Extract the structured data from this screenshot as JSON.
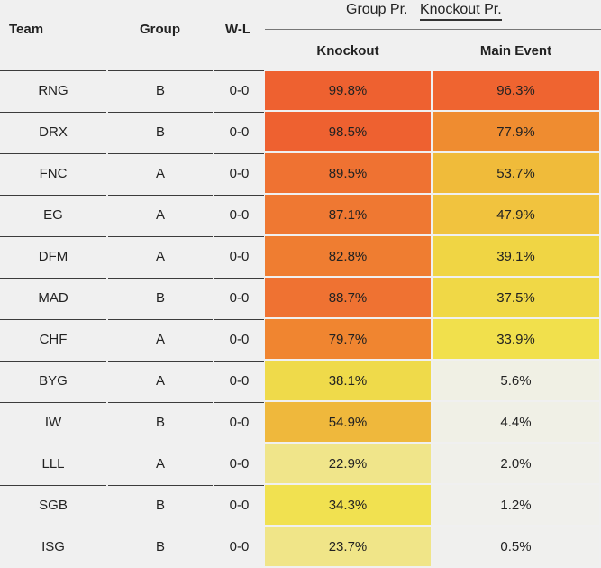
{
  "headers": {
    "team": "Team",
    "group": "Group",
    "wl": "W-L",
    "knockout": "Knockout",
    "main_event": "Main Event"
  },
  "tabs": [
    {
      "label": "Group Pr.",
      "active": false
    },
    {
      "label": "Knockout Pr.",
      "active": true
    }
  ],
  "rows": [
    {
      "team": "RNG",
      "group": "B",
      "wl": "0-0",
      "knockout": "99.8%",
      "main_event": "96.3%",
      "ko_color": "#ee6130",
      "me_color": "#ef6430"
    },
    {
      "team": "DRX",
      "group": "B",
      "wl": "0-0",
      "knockout": "98.5%",
      "main_event": "77.9%",
      "ko_color": "#ee6130",
      "me_color": "#ef8c30"
    },
    {
      "team": "FNC",
      "group": "A",
      "wl": "0-0",
      "knockout": "89.5%",
      "main_event": "53.7%",
      "ko_color": "#ef7232",
      "me_color": "#f0bb3a"
    },
    {
      "team": "EG",
      "group": "A",
      "wl": "0-0",
      "knockout": "87.1%",
      "main_event": "47.9%",
      "ko_color": "#ef7832",
      "me_color": "#f1c33e"
    },
    {
      "team": "DFM",
      "group": "A",
      "wl": "0-0",
      "knockout": "82.8%",
      "main_event": "39.1%",
      "ko_color": "#ef7d31",
      "me_color": "#f0d544"
    },
    {
      "team": "MAD",
      "group": "B",
      "wl": "0-0",
      "knockout": "88.7%",
      "main_event": "37.5%",
      "ko_color": "#ef7232",
      "me_color": "#f0d846"
    },
    {
      "team": "CHF",
      "group": "A",
      "wl": "0-0",
      "knockout": "79.7%",
      "main_event": "33.9%",
      "ko_color": "#f08530",
      "me_color": "#f1e04c"
    },
    {
      "team": "BYG",
      "group": "A",
      "wl": "0-0",
      "knockout": "38.1%",
      "main_event": "5.6%",
      "ko_color": "#efda4a",
      "me_color": "#f0f0e4"
    },
    {
      "team": "IW",
      "group": "B",
      "wl": "0-0",
      "knockout": "54.9%",
      "main_event": "4.4%",
      "ko_color": "#efb83c",
      "me_color": "#f0f0e6"
    },
    {
      "team": "LLL",
      "group": "A",
      "wl": "0-0",
      "knockout": "22.9%",
      "main_event": "2.0%",
      "ko_color": "#f0e58a",
      "me_color": "#f0f0ea"
    },
    {
      "team": "SGB",
      "group": "B",
      "wl": "0-0",
      "knockout": "34.3%",
      "main_event": "1.2%",
      "ko_color": "#f1e150",
      "me_color": "#f0f0ec"
    },
    {
      "team": "ISG",
      "group": "B",
      "wl": "0-0",
      "knockout": "23.7%",
      "main_event": "0.5%",
      "ko_color": "#f0e588",
      "me_color": "#f0f0ee"
    }
  ]
}
